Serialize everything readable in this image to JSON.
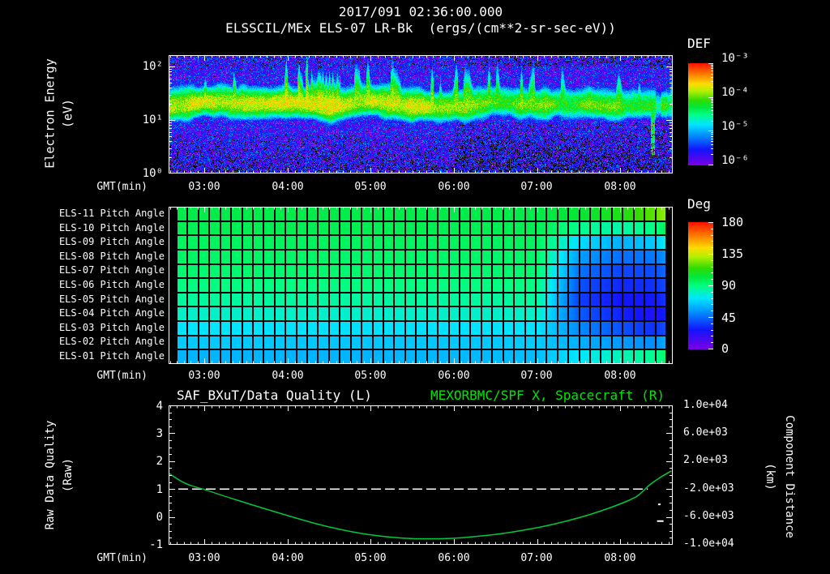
{
  "header": {
    "title_line1": "2017/091 02:36:00.000",
    "title_line2": "ELSSCIL/MEx ELS-07 LR-Bk  (ergs/(cm**2-sr-sec-eV))"
  },
  "time_axis": {
    "label": "GMT(min)",
    "hours": [
      "03:00",
      "04:00",
      "05:00",
      "06:00",
      "07:00",
      "08:00"
    ],
    "start_min": 154,
    "end_min": 518,
    "hour_tick_minutes": [
      180,
      240,
      300,
      360,
      420,
      480
    ]
  },
  "spectrogram_panel": {
    "ylabel_line1": "Electron Energy",
    "ylabel_line2": "(eV)",
    "yticks": [
      "10²",
      "10¹",
      "10⁰"
    ],
    "colorbar_title": "DEF",
    "colorbar_ticks": [
      "10⁻³",
      "10⁻⁴",
      "10⁻⁵",
      "10⁻⁶"
    ]
  },
  "pitch_panel": {
    "colorbar_title": "Deg",
    "colorbar_ticks": [
      "180",
      "135",
      "90",
      "45",
      "0"
    ]
  },
  "line_panel": {
    "title_left": "SAF_BXuT/Data Quality (L)",
    "title_right": "MEXORBMC/SPF X, Spacecraft (R)",
    "ylabel_left_line1": "Raw Data Quality",
    "ylabel_left_line2": "(Raw)",
    "yticks_left": [
      "4",
      "3",
      "2",
      "1",
      "0",
      "-1"
    ],
    "ylabel_right_line1": "Component Distance",
    "ylabel_right_line2": "(km)",
    "yticks_right": [
      "1.0e+04",
      "6.0e+03",
      "2.0e+03",
      "-2.0e+03",
      "-6.0e+03",
      "-1.0e+04"
    ]
  },
  "colors": {
    "text": "#ffffff",
    "accent_green": "#00e600",
    "curve_green": "#00c83c",
    "background": "#000000"
  },
  "chart_data": [
    {
      "type": "heatmap",
      "name": "electron-energy-spectrogram",
      "title": "ELSSCIL/MEx ELS-07 LR-Bk (ergs/(cm**2-sr-sec-eV))",
      "x_start": "02:34",
      "x_end": "08:38",
      "x_ticks": [
        "03:00",
        "04:00",
        "05:00",
        "06:00",
        "07:00",
        "08:00"
      ],
      "y_axis": "Electron Energy (eV)",
      "y_scale": "log",
      "y_range_ev": [
        1,
        163
      ],
      "color_scale_label": "DEF",
      "color_scale_units": "ergs/(cm**2-sr-sec-eV)",
      "flux_log10_range": [
        -6,
        -3
      ],
      "band": {
        "center_ev": 20,
        "extent_ev": [
          8,
          60
        ],
        "peak_log10_flux_before_0600": -3.78,
        "peak_log10_flux_after_0600": -4.05
      },
      "background_log10_flux_range": [
        -6.2,
        -5.2
      ],
      "narrow_enhancement_time": "08:23"
    },
    {
      "type": "heatmap",
      "name": "pitch-angle-grid",
      "color_scale_label": "Deg",
      "color_scale_range": [
        0,
        180
      ],
      "sample_times_min": [
        154,
        300,
        420,
        450,
        480,
        505,
        515
      ],
      "sample_times": [
        "02:34",
        "05:00",
        "07:00",
        "07:30",
        "08:00",
        "08:25",
        "08:35"
      ],
      "rows": [
        {
          "label": "ELS-11 Pitch Angle",
          "deg_values": [
            100,
            100,
            100,
            104,
            110,
            121,
            130
          ]
        },
        {
          "label": "ELS-10 Pitch Angle",
          "deg_values": [
            98,
            98,
            98,
            88,
            84,
            90,
            100
          ]
        },
        {
          "label": "ELS-09 Pitch Angle",
          "deg_values": [
            96,
            96,
            96,
            70,
            60,
            66,
            78
          ]
        },
        {
          "label": "ELS-08 Pitch Angle",
          "deg_values": [
            95,
            94,
            94,
            56,
            46,
            48,
            56
          ]
        },
        {
          "label": "ELS-07 Pitch Angle",
          "deg_values": [
            93,
            93,
            93,
            47,
            37,
            39,
            47
          ]
        },
        {
          "label": "ELS-06 Pitch Angle",
          "deg_values": [
            90,
            90,
            90,
            40,
            31,
            33,
            41
          ]
        },
        {
          "label": "ELS-05 Pitch Angle",
          "deg_values": [
            86,
            85,
            86,
            36,
            27,
            28,
            36
          ]
        },
        {
          "label": "ELS-04 Pitch Angle",
          "deg_values": [
            80,
            79,
            80,
            42,
            30,
            24,
            31
          ]
        },
        {
          "label": "ELS-03 Pitch Angle",
          "deg_values": [
            72,
            71,
            72,
            52,
            40,
            33,
            42
          ]
        },
        {
          "label": "ELS-02 Pitch Angle",
          "deg_values": [
            66,
            65,
            66,
            60,
            55,
            52,
            62
          ]
        },
        {
          "label": "ELS-01 Pitch Angle",
          "deg_values": [
            61,
            61,
            63,
            72,
            82,
            88,
            96
          ]
        }
      ]
    },
    {
      "type": "line",
      "name": "quality-and-spacecraft-position",
      "y_left_label": "Raw Data Quality (Raw)",
      "y_left_range": [
        -1,
        4
      ],
      "y_right_label": "Component Distance (km)",
      "y_right_range": [
        -10000,
        10000
      ],
      "series": [
        {
          "name": "SAF_BXuT/Data Quality (L)",
          "axis": "left",
          "color": "#ffffff",
          "style": "dashed",
          "points_min_raw": [
            [
              161,
              1.0
            ],
            [
              500,
              1.0
            ]
          ],
          "isolated_marks_min_raw": [
            [
              508,
              0.45
            ],
            [
              509,
              -0.15
            ]
          ]
        },
        {
          "name": "MEXORBMC/SPF X, Spacecraft (R)",
          "axis": "right",
          "color": "#00c83c",
          "points_min_km": [
            [
              154,
              280
            ],
            [
              166,
              -1280
            ],
            [
              179,
              -2000
            ],
            [
              197,
              -3200
            ],
            [
              215,
              -4320
            ],
            [
              233,
              -5400
            ],
            [
              251,
              -6480
            ],
            [
              269,
              -7400
            ],
            [
              287,
              -8200
            ],
            [
              305,
              -8720
            ],
            [
              323,
              -9080
            ],
            [
              341,
              -9160
            ],
            [
              359,
              -9080
            ],
            [
              377,
              -8800
            ],
            [
              395,
              -8400
            ],
            [
              413,
              -7800
            ],
            [
              431,
              -7120
            ],
            [
              449,
              -6200
            ],
            [
              467,
              -5120
            ],
            [
              481,
              -4080
            ],
            [
              492,
              -3120
            ],
            [
              496,
              -2400
            ],
            [
              500,
              -1600
            ],
            [
              506,
              -720
            ],
            [
              511,
              -80
            ],
            [
              517,
              600
            ]
          ]
        }
      ]
    }
  ]
}
